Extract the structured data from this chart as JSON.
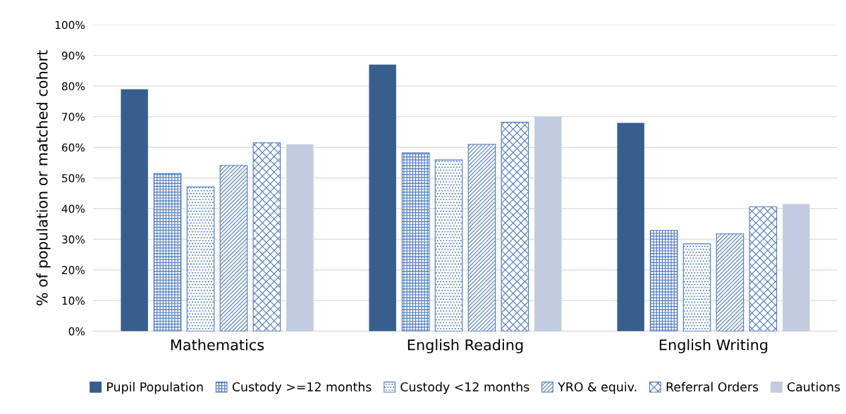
{
  "chart_data": {
    "type": "bar",
    "ylabel": "% of population or matched cohort",
    "categories": [
      "Mathematics",
      "English Reading",
      "English Writing"
    ],
    "series": [
      {
        "name": "Pupil Population",
        "color": "#375e8d",
        "values": [
          79,
          87,
          68
        ]
      },
      {
        "name": "Custody >=12 months",
        "color": "#4a78c0",
        "values": [
          51.5,
          58.2,
          32.9
        ]
      },
      {
        "name": "Custody <12 months",
        "color": "#4a78c0",
        "values": [
          47.1,
          55.9,
          28.5
        ]
      },
      {
        "name": "YRO & equiv.",
        "color": "#4a78c0",
        "values": [
          54.1,
          61,
          31.8
        ]
      },
      {
        "name": "Referral Orders",
        "color": "#4a78c0",
        "values": [
          61.5,
          68.2,
          40.6
        ]
      },
      {
        "name": "Cautions",
        "color": "#c2cbe0",
        "values": [
          61,
          70.1,
          41.5
        ]
      }
    ],
    "ylim": [
      0,
      100
    ],
    "yticks": [
      {
        "value": 0,
        "label": "0%"
      },
      {
        "value": 10,
        "label": "10%"
      },
      {
        "value": 20,
        "label": "20%"
      },
      {
        "value": 30,
        "label": "30%"
      },
      {
        "value": 40,
        "label": "40%"
      },
      {
        "value": 50,
        "label": "50%"
      },
      {
        "value": 60,
        "label": "60%"
      },
      {
        "value": 70,
        "label": "70%"
      },
      {
        "value": 80,
        "label": "80%"
      },
      {
        "value": 90,
        "label": "90%"
      },
      {
        "value": 100,
        "label": "100%"
      }
    ],
    "grid": "y",
    "legend": "bottom"
  }
}
